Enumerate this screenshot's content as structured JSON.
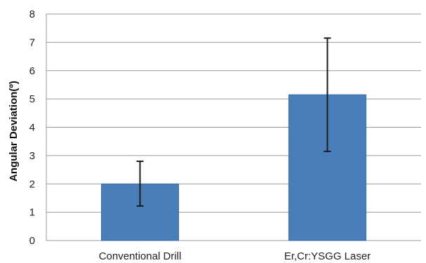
{
  "chart_data": {
    "type": "bar",
    "title": "",
    "xlabel": "",
    "ylabel": "Angular Deviation(º)",
    "ylim": [
      0,
      8
    ],
    "yticks": [
      0,
      1,
      2,
      3,
      4,
      5,
      6,
      7,
      8
    ],
    "grid": true,
    "legend": "none",
    "categories": [
      "Conventional Drill",
      "Er,Cr:YSGG Laser"
    ],
    "values": [
      2.0,
      5.15
    ],
    "error_low": [
      1.22,
      3.15
    ],
    "error_high": [
      2.8,
      7.15
    ],
    "colors": {
      "bar": "#4a7ebb",
      "bar_edge": "#3d6ea8",
      "grid": "#9a9a9a",
      "error_bar": "#1a1a1a"
    }
  }
}
